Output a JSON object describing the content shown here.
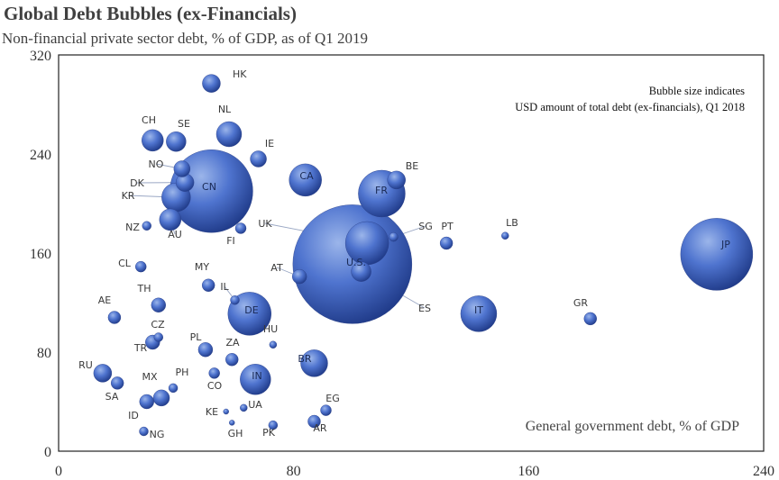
{
  "colors": {
    "bubble_light": "#9bb5ea",
    "bubble_mid": "#4f74cf",
    "bubble_dark": "#1b3582",
    "leader": "#9aa7c4",
    "frame": "#222222"
  },
  "chart_data": {
    "type": "scatter",
    "title": "Global Debt Bubbles (ex-Financials)",
    "subtitle": "Non-financial private sector debt, % of GDP, as of Q1 2019",
    "xlabel": "General government debt, % of GDP",
    "ylabel": "",
    "xlim": [
      0,
      240
    ],
    "ylim": [
      0,
      320
    ],
    "xticks": [
      0,
      80,
      160,
      240
    ],
    "yticks": [
      0,
      80,
      160,
      240,
      320
    ],
    "size_note": [
      "Bubble size indicates",
      "USD amount of total debt (ex-financials), Q1 2018"
    ],
    "grid": false,
    "points": [
      {
        "label": "HK",
        "x": 52,
        "y": 297,
        "r": 10
      },
      {
        "label": "CH",
        "x": 32,
        "y": 251,
        "r": 12
      },
      {
        "label": "SE",
        "x": 40,
        "y": 250,
        "r": 11
      },
      {
        "label": "NL",
        "x": 58,
        "y": 256,
        "r": 14
      },
      {
        "label": "IE",
        "x": 68,
        "y": 236,
        "r": 9
      },
      {
        "label": "NO",
        "x": 42,
        "y": 228,
        "r": 9
      },
      {
        "label": "DK",
        "x": 43,
        "y": 217,
        "r": 10
      },
      {
        "label": "CN",
        "x": 52,
        "y": 210,
        "r": 46
      },
      {
        "label": "KR",
        "x": 40,
        "y": 205,
        "r": 16
      },
      {
        "label": "CA",
        "x": 84,
        "y": 219,
        "r": 18
      },
      {
        "label": "FR",
        "x": 110,
        "y": 208,
        "r": 26
      },
      {
        "label": "BE",
        "x": 115,
        "y": 219,
        "r": 10
      },
      {
        "label": "NZ",
        "x": 30,
        "y": 182,
        "r": 5
      },
      {
        "label": "AU",
        "x": 38,
        "y": 187,
        "r": 12
      },
      {
        "label": "FI",
        "x": 62,
        "y": 180,
        "r": 6
      },
      {
        "label": "UK",
        "x": 105,
        "y": 168,
        "r": 24
      },
      {
        "label": "SG",
        "x": 114,
        "y": 173,
        "r": 5
      },
      {
        "label": "PT",
        "x": 132,
        "y": 168,
        "r": 7
      },
      {
        "label": "LB",
        "x": 152,
        "y": 174,
        "r": 4
      },
      {
        "label": "JP",
        "x": 224,
        "y": 159,
        "r": 40
      },
      {
        "label": "U.S.",
        "x": 100,
        "y": 151,
        "r": 66
      },
      {
        "label": "ES",
        "x": 103,
        "y": 145,
        "r": 11
      },
      {
        "label": "CL",
        "x": 28,
        "y": 149,
        "r": 6
      },
      {
        "label": "AT",
        "x": 82,
        "y": 141,
        "r": 8
      },
      {
        "label": "MY",
        "x": 51,
        "y": 134,
        "r": 7
      },
      {
        "label": "TH",
        "x": 34,
        "y": 118,
        "r": 8
      },
      {
        "label": "IL",
        "x": 60,
        "y": 122,
        "r": 5
      },
      {
        "label": "DE",
        "x": 65,
        "y": 111,
        "r": 24
      },
      {
        "label": "IT",
        "x": 143,
        "y": 111,
        "r": 20
      },
      {
        "label": "GR",
        "x": 181,
        "y": 107,
        "r": 7
      },
      {
        "label": "AE",
        "x": 19,
        "y": 108,
        "r": 7
      },
      {
        "label": "CZ",
        "x": 34,
        "y": 92,
        "r": 5
      },
      {
        "label": "TR",
        "x": 32,
        "y": 88,
        "r": 8
      },
      {
        "label": "HU",
        "x": 73,
        "y": 86,
        "r": 4
      },
      {
        "label": "PL",
        "x": 50,
        "y": 82,
        "r": 8
      },
      {
        "label": "ZA",
        "x": 59,
        "y": 74,
        "r": 7
      },
      {
        "label": "BR",
        "x": 87,
        "y": 71,
        "r": 15
      },
      {
        "label": "RU",
        "x": 15,
        "y": 63,
        "r": 10
      },
      {
        "label": "CO",
        "x": 53,
        "y": 63,
        "r": 6
      },
      {
        "label": "IN",
        "x": 67,
        "y": 58,
        "r": 17
      },
      {
        "label": "SA",
        "x": 20,
        "y": 55,
        "r": 7
      },
      {
        "label": "PH",
        "x": 39,
        "y": 51,
        "r": 5
      },
      {
        "label": "MX",
        "x": 35,
        "y": 43,
        "r": 9
      },
      {
        "label": "EG",
        "x": 91,
        "y": 33,
        "r": 6
      },
      {
        "label": "KE",
        "x": 57,
        "y": 32,
        "r": 3
      },
      {
        "label": "UA",
        "x": 63,
        "y": 35,
        "r": 4
      },
      {
        "label": "GH",
        "x": 59,
        "y": 23,
        "r": 3
      },
      {
        "label": "PK",
        "x": 73,
        "y": 21,
        "r": 5
      },
      {
        "label": "AR",
        "x": 87,
        "y": 24,
        "r": 7
      },
      {
        "label": "ID",
        "x": 30,
        "y": 40,
        "r": 8
      },
      {
        "label": "NG",
        "x": 29,
        "y": 16,
        "r": 5
      }
    ]
  }
}
